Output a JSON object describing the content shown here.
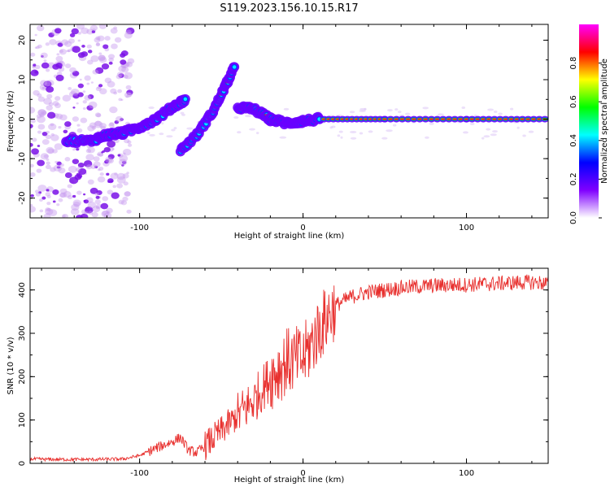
{
  "chart_data": [
    {
      "type": "heatmap",
      "title": "S119.2023.156.10.15.R17",
      "xlabel": "Height of straight line (km)",
      "ylabel": "Frequency (Hz)",
      "xlim": [
        -167,
        150
      ],
      "ylim": [
        -25,
        24
      ],
      "xticks": [
        -100,
        0,
        100
      ],
      "yticks": [
        -20,
        -10,
        0,
        10,
        20
      ],
      "grid": false,
      "colorbar": {
        "label": "Normalized spectral amplitude",
        "range": [
          0,
          1
        ],
        "ticks": [
          0.0,
          0.2,
          0.4,
          0.6,
          0.8
        ],
        "colormap": [
          "#ffffff",
          "#8000ff",
          "#0000ff",
          "#00ffff",
          "#00ff00",
          "#ffff00",
          "#ff0000",
          "#ff00ff"
        ]
      },
      "ridge": [
        {
          "x": -145,
          "y": -5.5
        },
        {
          "x": -130,
          "y": -5.5
        },
        {
          "x": -120,
          "y": -4
        },
        {
          "x": -110,
          "y": -3.5
        },
        {
          "x": -100,
          "y": -2
        },
        {
          "x": -90,
          "y": 0
        },
        {
          "x": -80,
          "y": 3
        },
        {
          "x": -72,
          "y": 5
        },
        {
          "x": -75,
          "y": -8
        },
        {
          "x": -65,
          "y": -4
        },
        {
          "x": -55,
          "y": 2
        },
        {
          "x": -48,
          "y": 8
        },
        {
          "x": -42,
          "y": 13
        },
        {
          "x": -40,
          "y": 3
        },
        {
          "x": -30,
          "y": 2.5
        },
        {
          "x": -20,
          "y": 0
        },
        {
          "x": -10,
          "y": -1
        },
        {
          "x": 0,
          "y": -0.5
        },
        {
          "x": 10,
          "y": 0
        },
        {
          "x": 50,
          "y": 0
        },
        {
          "x": 100,
          "y": 0
        },
        {
          "x": 148,
          "y": 0
        }
      ]
    },
    {
      "type": "line",
      "xlabel": "Height of straight line (km)",
      "ylabel": "SNR (10 * v/v)",
      "xlim": [
        -167,
        150
      ],
      "ylim": [
        0,
        450
      ],
      "xticks": [
        -100,
        0,
        100
      ],
      "yticks": [
        0,
        100,
        200,
        300,
        400
      ],
      "grid": false,
      "color": "#e8302e",
      "x": [
        -167,
        -150,
        -130,
        -110,
        -100,
        -90,
        -80,
        -75,
        -70,
        -65,
        -60,
        -50,
        -40,
        -30,
        -20,
        -10,
        0,
        10,
        20,
        30,
        40,
        50,
        60,
        80,
        100,
        120,
        140,
        150
      ],
      "y": [
        10,
        9,
        9,
        10,
        18,
        35,
        50,
        60,
        30,
        25,
        40,
        75,
        110,
        145,
        200,
        235,
        240,
        310,
        365,
        385,
        395,
        400,
        405,
        410,
        412,
        415,
        418,
        415
      ]
    }
  ]
}
